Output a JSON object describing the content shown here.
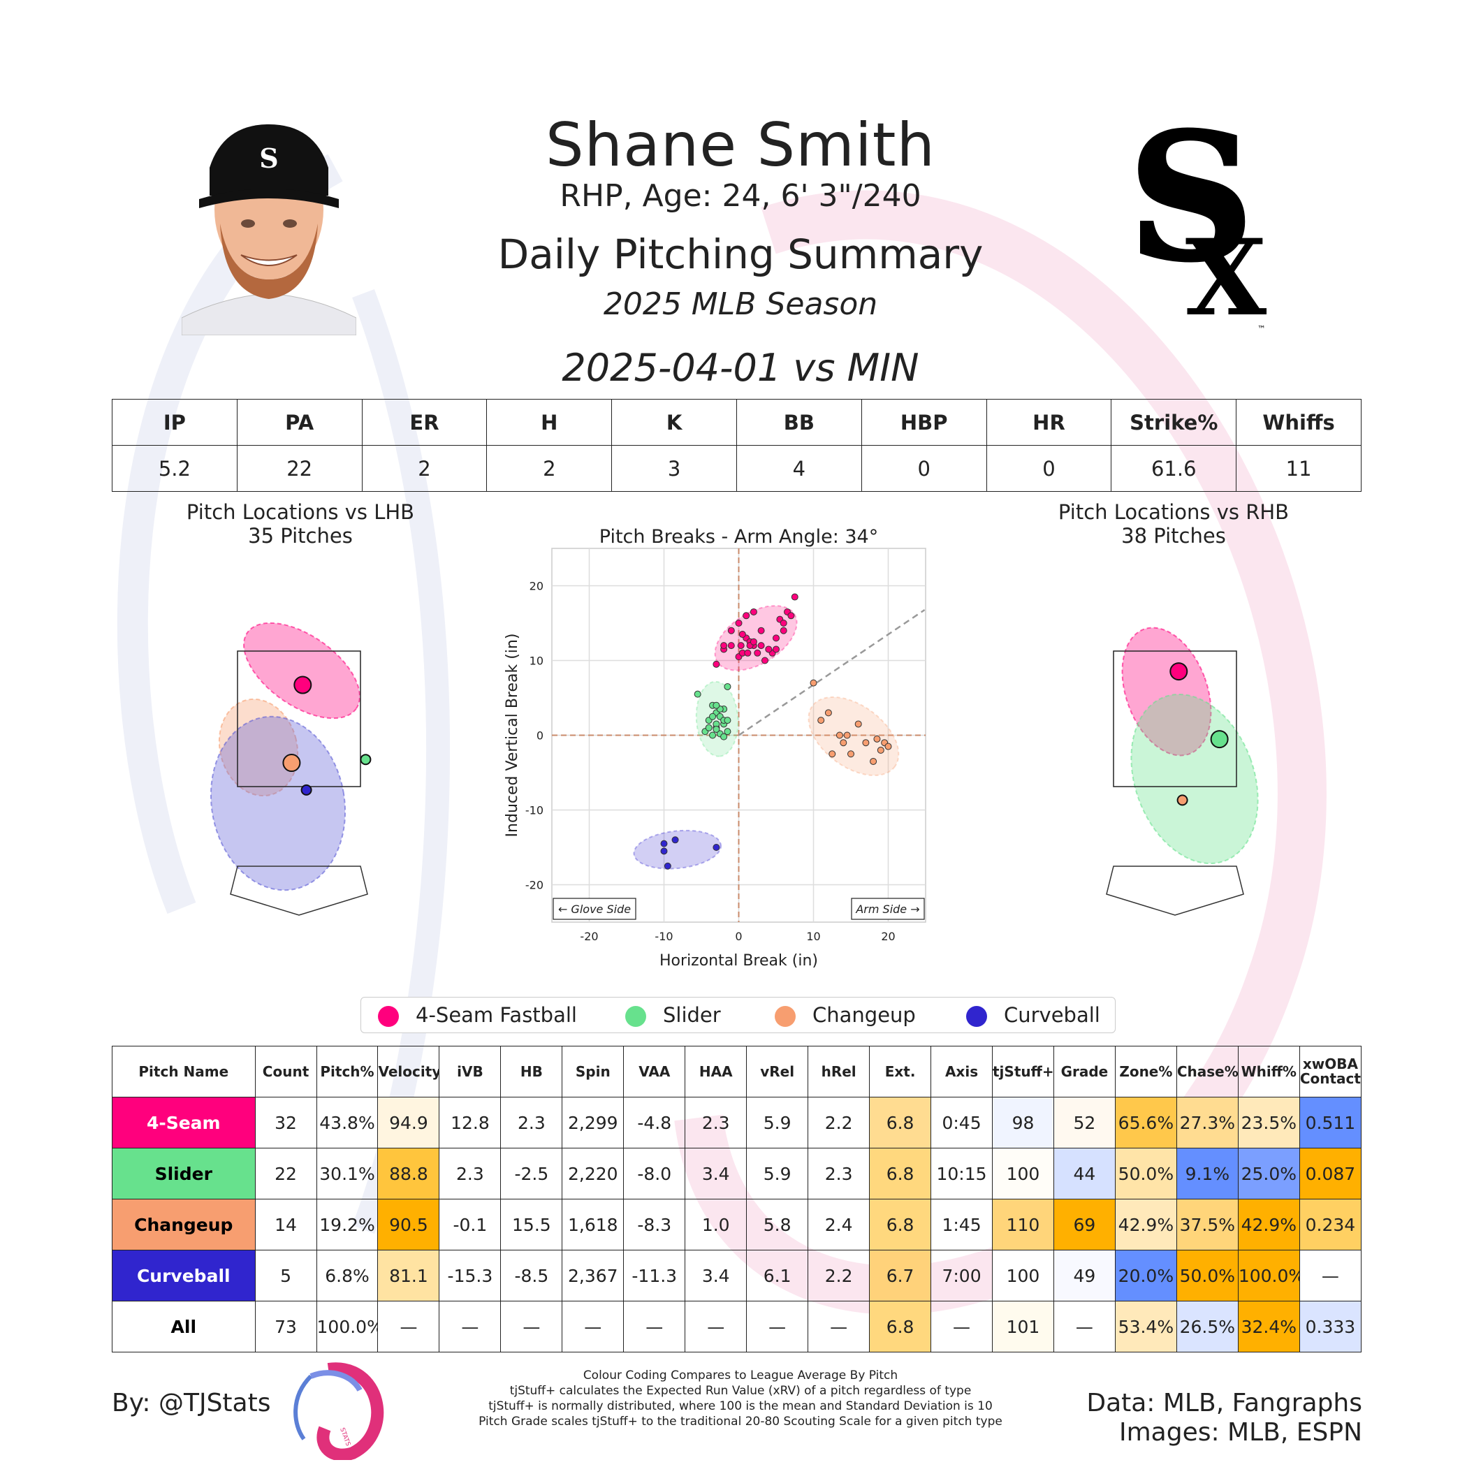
{
  "header": {
    "player_name": "Shane Smith",
    "bio": "RHP, Age: 24, 6' 3\"/240",
    "title": "Daily Pitching Summary",
    "season": "2025 MLB Season",
    "game": "2025-04-01 vs MIN"
  },
  "images": {
    "headshot": "player-headshot",
    "team_logo": "white-sox-logo",
    "team_logo_tm": "™"
  },
  "colors": {
    "fastball": "#FF007D",
    "slider": "#67E18D",
    "changeup": "#F79E70",
    "curveball": "#3025CE",
    "bad": "#648FFF",
    "neutral": "#FFFFFF",
    "good": "#FFB000"
  },
  "stat_line": {
    "headers": [
      "IP",
      "PA",
      "ER",
      "H",
      "K",
      "BB",
      "HBP",
      "HR",
      "Strike%",
      "Whiffs"
    ],
    "values": [
      "5.2",
      "22",
      "2",
      "2",
      "3",
      "4",
      "0",
      "0",
      "61.6",
      "11"
    ]
  },
  "chart_data": [
    {
      "type": "scatter",
      "title": "Pitch Locations vs LHB",
      "subtitle": "35 Pitches",
      "series": [
        {
          "name": "4-Seam Fastball",
          "x": [
            0.05
          ],
          "y": [
            3.0
          ]
        },
        {
          "name": "Changeup",
          "x": [
            -0.1
          ],
          "y": [
            1.85
          ]
        },
        {
          "name": "Curveball",
          "x": [
            0.1
          ],
          "y": [
            1.45
          ]
        },
        {
          "name": "Slider",
          "x": [
            0.9
          ],
          "y": [
            1.9
          ]
        }
      ]
    },
    {
      "type": "scatter",
      "title": "Pitch Breaks - Arm Angle: 34°",
      "xlabel": "Horizontal Break (in)",
      "ylabel": "Induced Vertical Break (in)",
      "xlim": [
        -25,
        25
      ],
      "ylim": [
        -25,
        25
      ],
      "xticks": [
        -20,
        -10,
        0,
        10,
        20
      ],
      "yticks": [
        -20,
        -10,
        0,
        10,
        20
      ],
      "grid": true,
      "annotations": [
        "← Glove Side",
        "Arm Side →"
      ],
      "arm_angle_deg": 34,
      "series": [
        {
          "name": "4-Seam Fastball",
          "x": [
            -3,
            -2,
            -1,
            0,
            0.5,
            1,
            1.5,
            2,
            2.5,
            3,
            3.5,
            0,
            1,
            2,
            -1,
            -2,
            0.5,
            1.5,
            3,
            4.5,
            5,
            5.5,
            6,
            6.5,
            7,
            7.5,
            6,
            5,
            4,
            2,
            1.2,
            0.3
          ],
          "y": [
            9.5,
            11.5,
            12,
            10.5,
            11,
            13,
            12.5,
            12,
            11,
            12,
            10,
            15,
            16,
            16.5,
            14,
            12,
            13.5,
            12,
            14,
            11,
            13,
            15.5,
            15,
            16.5,
            16,
            18.5,
            14,
            11.5,
            11.5,
            12.5,
            11,
            12
          ]
        },
        {
          "name": "Slider",
          "x": [
            -5.5,
            -1.5,
            -3.5,
            -2,
            -3,
            -2.5,
            -4,
            -2,
            -3,
            -1.5,
            -3.5,
            -2.5,
            -4.5,
            -3,
            -2,
            -3.5,
            -2.5,
            -3,
            -1.5,
            -4,
            -2,
            -3
          ],
          "y": [
            5.5,
            6.5,
            4,
            3.5,
            3,
            2.5,
            2,
            1.5,
            1,
            0.5,
            0,
            0.2,
            0.5,
            1.5,
            2,
            2.5,
            3.5,
            4,
            2,
            1,
            -0.2,
            0.8
          ]
        },
        {
          "name": "Changeup",
          "x": [
            10,
            11,
            12,
            13.5,
            14,
            15,
            16,
            17,
            18,
            18.5,
            19,
            19.5,
            20,
            12.5,
            14.5
          ],
          "y": [
            7,
            2,
            3,
            0,
            -1,
            -2.5,
            1.5,
            -1,
            -3.5,
            -0.5,
            -2,
            -1,
            -1.5,
            -2.5,
            0
          ]
        },
        {
          "name": "Curveball",
          "x": [
            -10,
            -8.5,
            -10,
            -3,
            -9.5
          ],
          "y": [
            -14.5,
            -14,
            -15.5,
            -15,
            -17.5
          ]
        }
      ]
    },
    {
      "type": "scatter",
      "title": "Pitch Locations vs RHB",
      "subtitle": "38 Pitches",
      "series": [
        {
          "name": "4-Seam Fastball",
          "x": [
            0.05
          ],
          "y": [
            3.2
          ]
        },
        {
          "name": "Slider",
          "x": [
            0.6
          ],
          "y": [
            2.2
          ]
        },
        {
          "name": "Changeup",
          "x": [
            0.1
          ],
          "y": [
            1.3
          ]
        }
      ]
    }
  ],
  "legend": [
    "4-Seam Fastball",
    "Slider",
    "Changeup",
    "Curveball"
  ],
  "pitch_table": {
    "headers": [
      "Pitch Name",
      "Count",
      "Pitch%",
      "Velocity",
      "iVB",
      "HB",
      "Spin",
      "VAA",
      "HAA",
      "vRel",
      "hRel",
      "Ext.",
      "Axis",
      "tjStuff+",
      "Grade",
      "Zone%",
      "Chase%",
      "Whiff%",
      "xwOBA Contact"
    ],
    "rows": [
      {
        "name": "4-Seam",
        "key": "fastball",
        "cells": [
          "32",
          "43.8%",
          "94.9",
          "12.8",
          "2.3",
          "2,299",
          "-4.8",
          "2.3",
          "5.9",
          "2.2",
          "6.8",
          "0:45",
          "98",
          "52",
          "65.6%",
          "27.3%",
          "23.5%",
          "0.511"
        ],
        "shades": [
          "",
          "",
          "#FFF5E0",
          "",
          "",
          "",
          "",
          "",
          "",
          "",
          "#FFDC91",
          "",
          "#F0F4FF",
          "#FFF9F0",
          "#FFC84B",
          "#FFDC91",
          "#FFE9BA",
          "#648FFF"
        ]
      },
      {
        "name": "Slider",
        "key": "slider",
        "cells": [
          "22",
          "30.1%",
          "88.8",
          "2.3",
          "-2.5",
          "2,220",
          "-8.0",
          "3.4",
          "5.9",
          "2.3",
          "6.8",
          "10:15",
          "100",
          "44",
          "50.0%",
          "9.1%",
          "25.0%",
          "0.087"
        ],
        "shades": [
          "",
          "",
          "#FFC53D",
          "",
          "",
          "",
          "",
          "",
          "",
          "",
          "#FFD87E",
          "",
          "#FFFDF8",
          "#D6E1FF",
          "#FFE4A8",
          "#648FFF",
          "#7B9FFF",
          "#FFB000"
        ]
      },
      {
        "name": "Changeup",
        "key": "changeup",
        "cells": [
          "14",
          "19.2%",
          "90.5",
          "-0.1",
          "15.5",
          "1,618",
          "-8.3",
          "1.0",
          "5.8",
          "2.4",
          "6.8",
          "1:45",
          "110",
          "69",
          "42.9%",
          "37.5%",
          "42.9%",
          "0.234"
        ],
        "shades": [
          "",
          "",
          "#FFB000",
          "",
          "",
          "",
          "",
          "",
          "",
          "",
          "#FFD87E",
          "",
          "#FFD57A",
          "#FFB000",
          "#FFE9BA",
          "#FFD57A",
          "#FFB000",
          "#FFD062"
        ]
      },
      {
        "name": "Curveball",
        "key": "curveball",
        "cells": [
          "5",
          "6.8%",
          "81.1",
          "-15.3",
          "-8.5",
          "2,367",
          "-11.3",
          "3.4",
          "6.1",
          "2.2",
          "6.7",
          "7:00",
          "100",
          "49",
          "20.0%",
          "50.0%",
          "100.0%",
          "—"
        ],
        "shades": [
          "",
          "",
          "#FFE3A2",
          "",
          "",
          "",
          "",
          "",
          "",
          "",
          "#FFD27A",
          "",
          "#FFFFFF",
          "#F8F9FF",
          "#648FFF",
          "#FFB000",
          "#FFB000",
          ""
        ]
      },
      {
        "name": "All",
        "key": "all",
        "cells": [
          "73",
          "100.0%",
          "—",
          "—",
          "—",
          "—",
          "—",
          "—",
          "—",
          "—",
          "6.8",
          "—",
          "101",
          "—",
          "53.4%",
          "26.5%",
          "32.4%",
          "0.333"
        ],
        "shades": [
          "",
          "",
          "",
          "",
          "",
          "",
          "",
          "",
          "",
          "",
          "#FFD87E",
          "",
          "#FFFBEE",
          "",
          "#FFE9BA",
          "#DAE4FF",
          "#FFB000",
          "#DAE4FF"
        ]
      }
    ]
  },
  "footer": {
    "by": "By: @TJStats",
    "logo_text": "STATS",
    "data_source": "Data: MLB, Fangraphs",
    "image_source": "Images: MLB, ESPN",
    "notes": [
      "Colour Coding Compares to League Average By Pitch",
      "tjStuff+ calculates the Expected Run Value (xRV) of a pitch regardless of type",
      "tjStuff+ is normally distributed, where 100 is the mean and Standard Deviation is 10",
      "Pitch Grade scales tjStuff+ to the traditional 20-80 Scouting Scale for a given pitch type"
    ]
  }
}
